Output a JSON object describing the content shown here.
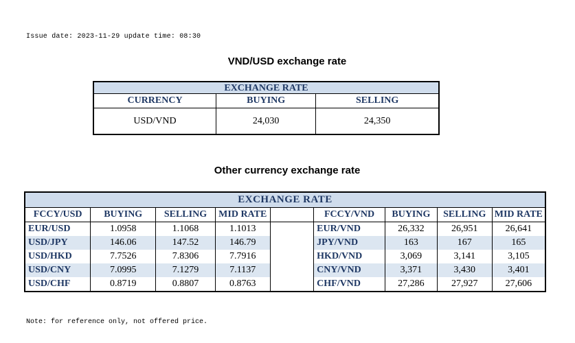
{
  "issue_line": "Issue date: 2023-11-29 update time: 08:30",
  "vnd_usd": {
    "title": "VND/USD exchange rate",
    "band": "EXCHANGE RATE",
    "headers": [
      "CURRENCY",
      "BUYING",
      "SELLING"
    ],
    "row": [
      "USD/VND",
      "24,030",
      "24,350"
    ]
  },
  "other": {
    "title": "Other currency exchange rate",
    "band": "EXCHANGE  RATE",
    "left_headers": [
      "FCCY/USD",
      "BUYING",
      "SELLING",
      "MID RATE"
    ],
    "right_headers": [
      "FCCY/VND",
      "BUYING",
      "SELLING",
      "MID RATE"
    ],
    "left_rows": [
      [
        "EUR/USD",
        "1.0958",
        "1.1068",
        "1.1013"
      ],
      [
        "USD/JPY",
        "146.06",
        "147.52",
        "146.79"
      ],
      [
        "USD/HKD",
        "7.7526",
        "7.8306",
        "7.7916"
      ],
      [
        "USD/CNY",
        "7.0995",
        "7.1279",
        "7.1137"
      ],
      [
        "USD/CHF",
        "0.8719",
        "0.8807",
        "0.8763"
      ]
    ],
    "right_rows": [
      [
        "EUR/VND",
        "26,332",
        "26,951",
        "26,641"
      ],
      [
        "JPY/VND",
        "163",
        "167",
        "165"
      ],
      [
        "HKD/VND",
        "3,069",
        "3,141",
        "3,105"
      ],
      [
        "CNY/VND",
        "3,371",
        "3,430",
        "3,401"
      ],
      [
        "CHF/VND",
        "27,286",
        "27,927",
        "27,606"
      ]
    ]
  },
  "note": "Note: for reference only, not offered price."
}
